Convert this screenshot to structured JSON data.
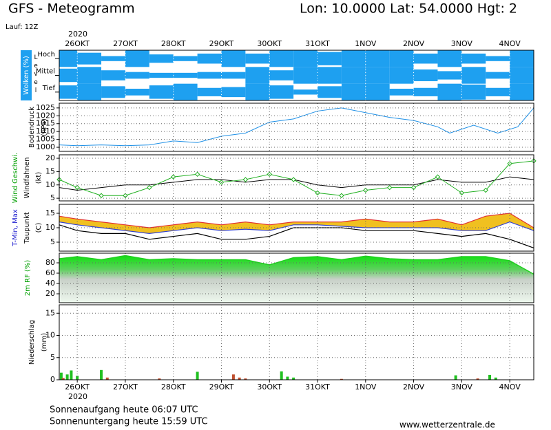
{
  "header": {
    "title": "GFS - Meteogramm",
    "location": "Lon: 10.0000 Lat: 54.0000 Hgt: 2",
    "run": "Lauf: 12Z"
  },
  "footer": {
    "sunrise": "Sonnenaufgang heute 06:07 UTC",
    "sunset": "Sonnenuntergang heute 15:59 UTC",
    "source": "www.wetterzentrale.de"
  },
  "chart_data": [
    {
      "type": "clouds",
      "ylabel": "Wolken (%)",
      "level_label": "Level",
      "year": "2020",
      "xlim": [
        -9,
        228
      ],
      "xticks": [
        {
          "value": 0,
          "label": "26OKT"
        },
        {
          "value": 24,
          "label": "27OKT"
        },
        {
          "value": 48,
          "label": "28OKT"
        },
        {
          "value": 72,
          "label": "29OKT"
        },
        {
          "value": 96,
          "label": "30OKT"
        },
        {
          "value": 120,
          "label": "31OKT"
        },
        {
          "value": 144,
          "label": "1NOV"
        },
        {
          "value": 168,
          "label": "2NOV"
        },
        {
          "value": 192,
          "label": "3NOV"
        },
        {
          "value": 216,
          "label": "4NOV"
        }
      ],
      "x": [
        -6,
        6,
        18,
        30,
        42,
        54,
        66,
        78,
        90,
        102,
        114,
        126,
        138,
        150,
        162,
        174,
        186,
        198,
        210,
        222
      ],
      "series": [
        {
          "name": "Hoch",
          "color": "#1ea0f0",
          "values": [
            100,
            70,
            30,
            100,
            50,
            30,
            60,
            100,
            60,
            100,
            100,
            80,
            100,
            100,
            100,
            60,
            100,
            60,
            30,
            100
          ]
        },
        {
          "name": "Mittel",
          "color": "#1ea0f0",
          "values": [
            80,
            100,
            60,
            40,
            30,
            30,
            40,
            40,
            100,
            60,
            100,
            100,
            100,
            100,
            100,
            70,
            50,
            100,
            40,
            100
          ]
        },
        {
          "name": "Tief",
          "color": "#1ea0f0",
          "values": [
            80,
            100,
            70,
            40,
            80,
            100,
            50,
            60,
            100,
            80,
            30,
            70,
            100,
            100,
            40,
            50,
            100,
            90,
            50,
            100
          ]
        }
      ]
    },
    {
      "type": "line",
      "ylabels": [
        "Bodendruck",
        "(hPa)"
      ],
      "ylim": [
        997.4,
        1028
      ],
      "yticks": [
        1000,
        1005,
        1010,
        1015,
        1020,
        1025
      ],
      "series": [
        {
          "color": "#1e90e6",
          "x": [
            -9,
            0,
            12,
            24,
            36,
            48,
            60,
            72,
            84,
            96,
            108,
            120,
            132,
            144,
            156,
            168,
            180,
            186,
            198,
            210,
            220,
            228
          ],
          "values": [
            1001.5,
            1001,
            1001.5,
            1001,
            1001.5,
            1004,
            1003,
            1007,
            1009,
            1016,
            1018,
            1023,
            1025,
            1022,
            1019,
            1017,
            1013,
            1009,
            1014,
            1009,
            1013,
            1025
          ]
        }
      ]
    },
    {
      "type": "line",
      "ylabels": [
        "Wind Geschwi.",
        "Windfahnen",
        "(kt)"
      ],
      "ylabel_colors": [
        "#00a000",
        "#000000",
        "#000000"
      ],
      "ylim": [
        4,
        21.3
      ],
      "yticks": [
        5,
        10,
        15,
        20
      ],
      "series": [
        {
          "color": "#000000",
          "x": [
            -9,
            0,
            12,
            24,
            36,
            48,
            60,
            72,
            84,
            96,
            108,
            120,
            132,
            144,
            156,
            168,
            180,
            192,
            204,
            216,
            228
          ],
          "values": [
            9,
            8,
            9,
            10,
            10,
            11,
            12,
            12,
            11,
            12,
            12,
            10,
            9,
            10,
            10,
            10,
            12,
            11,
            11,
            13,
            12
          ]
        },
        {
          "color": "#22b022",
          "marker": "diamond",
          "x": [
            -9,
            0,
            12,
            24,
            36,
            48,
            60,
            72,
            84,
            96,
            108,
            120,
            132,
            144,
            156,
            168,
            180,
            192,
            204,
            216,
            228
          ],
          "values": [
            12,
            9,
            6,
            6,
            9,
            13,
            14,
            11,
            12,
            14,
            12,
            7,
            6,
            8,
            9,
            9,
            13,
            7,
            8,
            18,
            19
          ]
        }
      ]
    },
    {
      "type": "band",
      "ylabels": [
        "T-Min, Max",
        "Taupunkt",
        "(C)"
      ],
      "ylabel_colors": [
        "#2020d0",
        "#000000",
        "#000000"
      ],
      "ylim": [
        1.9,
        18.1
      ],
      "yticks": [
        5,
        10,
        15
      ],
      "band_color": "#f0c020",
      "x": [
        -9,
        0,
        12,
        24,
        36,
        48,
        60,
        72,
        84,
        96,
        108,
        120,
        132,
        144,
        156,
        168,
        180,
        192,
        204,
        216,
        228
      ],
      "series": [
        {
          "color": "#e03030",
          "values": [
            14,
            13,
            12,
            11,
            10,
            11,
            12,
            11,
            12,
            11,
            12,
            12,
            12,
            13,
            12,
            12,
            13,
            11,
            14,
            15,
            10
          ]
        },
        {
          "color": "#3040d0",
          "values": [
            12,
            11,
            10,
            9,
            8,
            9,
            10,
            9,
            9.5,
            9,
            11,
            11,
            10.5,
            10,
            10,
            10,
            10,
            9,
            9,
            12,
            9
          ]
        },
        {
          "color": "#000000",
          "values": [
            11,
            9,
            8,
            8,
            6,
            7,
            8,
            6,
            6,
            7,
            10,
            10,
            10,
            9,
            9,
            9,
            8,
            7,
            8,
            6,
            3
          ]
        }
      ]
    },
    {
      "type": "area",
      "ylabels": [
        "2m RF (%)"
      ],
      "ylabel_colors": [
        "#00a000"
      ],
      "ylim": [
        2.7,
        98.7
      ],
      "yticks": [
        20,
        40,
        60,
        80
      ],
      "color": "#20d020",
      "x": [
        -9,
        0,
        12,
        24,
        36,
        48,
        60,
        72,
        84,
        96,
        108,
        120,
        132,
        144,
        156,
        168,
        180,
        192,
        204,
        216,
        228
      ],
      "values": [
        88,
        92,
        86,
        94,
        86,
        88,
        86,
        86,
        86,
        76,
        90,
        92,
        86,
        93,
        88,
        86,
        86,
        92,
        92,
        84,
        58
      ]
    },
    {
      "type": "bar",
      "ylabels": [
        "Niederschlag",
        "(mm)"
      ],
      "year": "2020",
      "ylim": [
        0,
        16.9
      ],
      "yticks": [
        0,
        5,
        10,
        15
      ],
      "series": [
        {
          "color": "#20c020",
          "x": [
            -8,
            -5,
            -3,
            0,
            12,
            60,
            102,
            105,
            108,
            189,
            206,
            209
          ],
          "values": [
            1.6,
            1.2,
            2.1,
            0.9,
            2.2,
            1.8,
            1.9,
            0.7,
            0.5,
            1.0,
            1.1,
            0.5
          ]
        },
        {
          "color": "#c05030",
          "x": [
            -7,
            15,
            41,
            78,
            81,
            84,
            132,
            200
          ],
          "values": [
            0.4,
            0.5,
            0.3,
            1.2,
            0.5,
            0.3,
            0.2,
            0.3
          ]
        }
      ]
    }
  ]
}
